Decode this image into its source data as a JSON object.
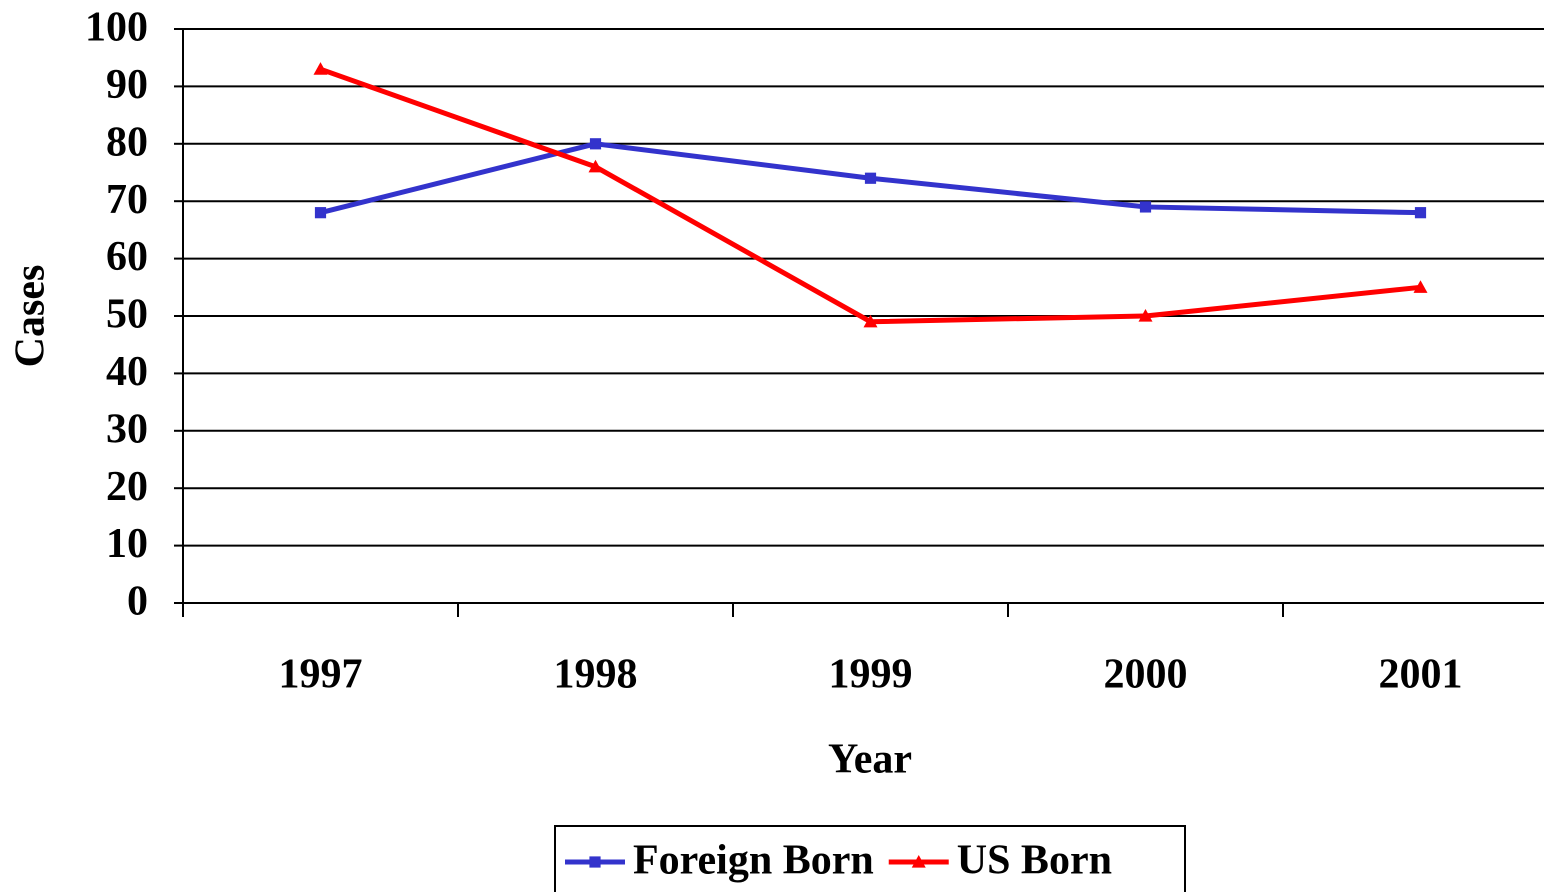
{
  "chart_data": {
    "type": "line",
    "categories": [
      "1997",
      "1998",
      "1999",
      "2000",
      "2001"
    ],
    "series": [
      {
        "name": "Foreign Born",
        "color": "#3333cc",
        "marker": "square",
        "values": [
          68,
          80,
          74,
          69,
          68
        ]
      },
      {
        "name": "US Born",
        "color": "#ff0000",
        "marker": "triangle",
        "values": [
          93,
          76,
          49,
          50,
          55
        ]
      }
    ],
    "xlabel": "Year",
    "ylabel": "Cases",
    "ylim": [
      0,
      100
    ],
    "yticks": [
      0,
      10,
      20,
      30,
      40,
      50,
      60,
      70,
      80,
      90,
      100
    ],
    "grid": true,
    "legend": "bottom"
  }
}
